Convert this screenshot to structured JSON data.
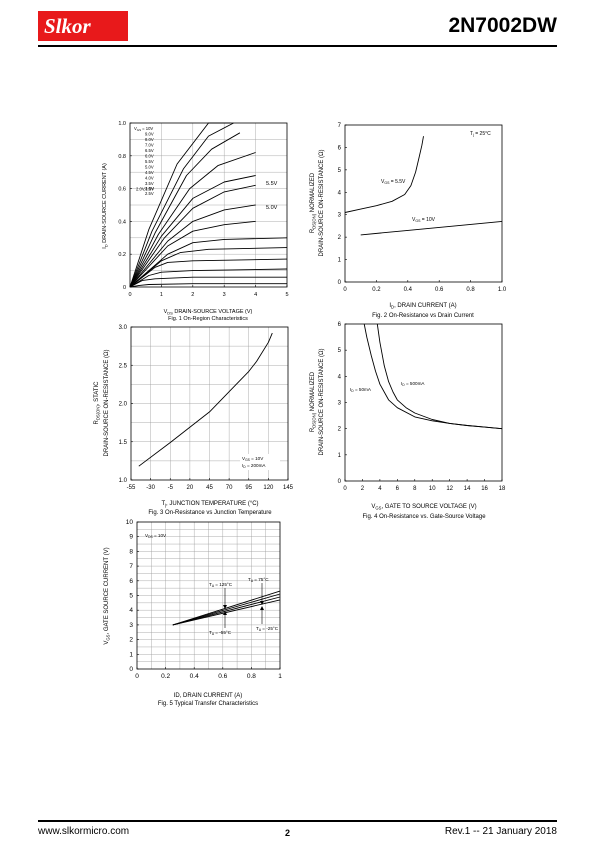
{
  "header": {
    "brand": "Slkor",
    "part": "2N7002DW"
  },
  "footer": {
    "website": "www.slkormicro.com",
    "page_number": "2",
    "revision": "Rev.1 -- 21 January 2018"
  },
  "charts": {
    "fig1": {
      "caption": "Fig. 1  On-Region Characteristics",
      "xlabel_pre": "V",
      "xlabel_sub": "DS",
      "xlabel_post": " DRAIN-SOURCE VOLTAGE (V)",
      "ylabel_pre": "I",
      "ylabel_sub": "D",
      "ylabel_post": " DRAIN-SOURCE CURRENT (A)",
      "xticks": [
        "0",
        "1",
        "2",
        "3",
        "4",
        "5"
      ],
      "yticks": [
        "0",
        "0.2",
        "0.4",
        "0.6",
        "0.8",
        "1.0"
      ],
      "legend_pre": "V",
      "legend_sub": "GS",
      "legend": [
        "= 10V",
        "9.0V",
        "8.0V",
        "7.0V",
        "6.5V",
        "6.0V",
        "5.5V",
        "5.0V",
        "4.5V",
        "4.0V",
        "3.5V",
        "3.0V",
        "2.5V",
        "2.0V,1.5V"
      ],
      "label_a": "5.5V",
      "label_b": "5.0V"
    },
    "fig2": {
      "caption": "Fig. 2  On-Resistance vs Drain Current",
      "xlabel_pre": "I",
      "xlabel_sub": "D",
      "xlabel_post": ", DRAIN CURRENT (A)",
      "ylabel1_pre": "R",
      "ylabel1_sub": "DS(ON)",
      "ylabel1_post": "  NORMALIZED",
      "ylabel2": "DRAIN-SOURCE ON-RESISTANCE (Ω)",
      "xticks": [
        "0",
        "0.2",
        "0.4",
        "0.6",
        "0.8",
        "1.0"
      ],
      "yticks": [
        "0",
        "1",
        "2",
        "3",
        "4",
        "5",
        "6",
        "7"
      ],
      "temp_pre": "T",
      "temp_sub": "j",
      "temp_post": " = 25°C",
      "curve_a_pre": "V",
      "curve_a_sub": "GS",
      "curve_a_post": " = 5.5V",
      "curve_b_pre": "V",
      "curve_b_sub": "GS",
      "curve_b_post": " = 10V"
    },
    "fig3": {
      "caption": "Fig. 3  On-Resistance vs Junction Temperature",
      "xlabel_pre": "T",
      "xlabel_sub": "j",
      "xlabel_post": ", JUNCTION TEMPERATURE (°C)",
      "ylabel1_pre": "R",
      "ylabel1_sub": "DS(ON)",
      "ylabel1_post": ", STATIC",
      "ylabel2": "DRAIN-SOURCE ON-RESISTANCE (Ω)",
      "xticks": [
        "-55",
        "-30",
        "-5",
        "20",
        "45",
        "70",
        "95",
        "120",
        "145"
      ],
      "yticks": [
        "1.0",
        "1.5",
        "2.0",
        "2.5",
        "3.0"
      ],
      "note1_pre": "V",
      "note1_sub": "GS",
      "note1_post": " = 10V",
      "note2_pre": "I",
      "note2_sub": "D",
      "note2_post": " = 200mA"
    },
    "fig4": {
      "caption": "Fig. 4  On-Resistance vs. Gate-Source Voltage",
      "xlabel_pre": "V",
      "xlabel_sub": "GS",
      "xlabel_post": ", GATE TO SOURCE VOLTAGE (V)",
      "ylabel1_pre": "R",
      "ylabel1_sub": "DS(ON)",
      "ylabel1_post": "  NORMALIZED",
      "ylabel2": "DRAIN-SOURCE ON-RESISTANCE (Ω)",
      "xticks": [
        "0",
        "2",
        "4",
        "6",
        "8",
        "10",
        "12",
        "14",
        "16",
        "18"
      ],
      "yticks": [
        "0",
        "1",
        "2",
        "3",
        "4",
        "5",
        "6"
      ],
      "curve_a_pre": "I",
      "curve_a_sub": "D",
      "curve_a_post": " = 50mA",
      "curve_b_pre": "I",
      "curve_b_sub": "D",
      "curve_b_post": " = 500mA"
    },
    "fig5": {
      "caption": "Fig. 5  Typical Transfer Characteristics",
      "xlabel": "ID, DRAIN CURRENT (A)",
      "ylabel_pre": "V",
      "ylabel_sub": "GS",
      "ylabel_post": ", GATE SOURCE CURRENT (V)",
      "xticks": [
        "0",
        "0.2",
        "0.4",
        "0.6",
        "0.8",
        "1"
      ],
      "yticks": [
        "0",
        "1",
        "2",
        "3",
        "4",
        "5",
        "6",
        "7",
        "8",
        "9",
        "10"
      ],
      "vds_pre": "V",
      "vds_sub": "DS",
      "vds_post": " = 10V",
      "t125_pre": "T",
      "t125_sub": "A",
      "t125_post": " = 125°C",
      "t75_pre": "T",
      "t75_sub": "A",
      "t75_post": " = 75°C",
      "tm55_pre": "T",
      "tm55_sub": "A",
      "tm55_post": " = -55°C",
      "tm25_pre": "T",
      "tm25_sub": "A",
      "tm25_post": " = -25°C"
    }
  },
  "chart_data": [
    {
      "type": "line",
      "xlim": [
        0,
        5
      ],
      "ylim": [
        0,
        1.0
      ],
      "grid": true,
      "series": [
        {
          "x": [
            0,
            0.6,
            1.5,
            2.5,
            3.2
          ],
          "y": [
            0,
            0.35,
            0.75,
            1.0,
            1.0
          ]
        },
        {
          "x": [
            0,
            0.7,
            1.7,
            2.5,
            3.3
          ],
          "y": [
            0,
            0.34,
            0.72,
            0.92,
            1.0
          ]
        },
        {
          "x": [
            0,
            0.8,
            1.8,
            2.6,
            3.5
          ],
          "y": [
            0,
            0.33,
            0.68,
            0.84,
            0.94
          ]
        },
        {
          "x": [
            0,
            0.9,
            1.9,
            2.8,
            4.0
          ],
          "y": [
            0,
            0.32,
            0.6,
            0.74,
            0.82
          ]
        },
        {
          "x": [
            0,
            1.0,
            2.0,
            3.0,
            4.0
          ],
          "y": [
            0,
            0.31,
            0.54,
            0.64,
            0.68
          ]
        },
        {
          "x": [
            0,
            1.1,
            2.0,
            3.0,
            4.0
          ],
          "y": [
            0,
            0.3,
            0.48,
            0.58,
            0.62
          ]
        },
        {
          "x": [
            0,
            1.2,
            2.0,
            3.0,
            4.0
          ],
          "y": [
            0,
            0.28,
            0.4,
            0.47,
            0.5
          ]
        },
        {
          "x": [
            0,
            1.2,
            2.0,
            3.0,
            4.0
          ],
          "y": [
            0,
            0.25,
            0.34,
            0.38,
            0.4
          ]
        },
        {
          "x": [
            0,
            1.2,
            2.0,
            3.0,
            5.0
          ],
          "y": [
            0,
            0.2,
            0.27,
            0.29,
            0.3
          ]
        },
        {
          "x": [
            0,
            1.0,
            1.6,
            2.5,
            5.0
          ],
          "y": [
            0,
            0.16,
            0.21,
            0.23,
            0.24
          ]
        },
        {
          "x": [
            0,
            0.8,
            1.2,
            2.0,
            5.0
          ],
          "y": [
            0,
            0.12,
            0.15,
            0.16,
            0.17
          ]
        },
        {
          "x": [
            0,
            0.6,
            1.0,
            2.0,
            5.0
          ],
          "y": [
            0,
            0.07,
            0.09,
            0.1,
            0.11
          ]
        },
        {
          "x": [
            0,
            0.4,
            0.8,
            2.0,
            5.0
          ],
          "y": [
            0,
            0.04,
            0.05,
            0.06,
            0.06
          ]
        },
        {
          "x": [
            0,
            0.3,
            0.6,
            2.0,
            5.0
          ],
          "y": [
            0,
            0.01,
            0.015,
            0.02,
            0.02
          ]
        }
      ]
    },
    {
      "type": "line",
      "xlim": [
        0,
        1.0
      ],
      "ylim": [
        0,
        7
      ],
      "grid": false,
      "series": [
        {
          "x": [
            0,
            0.1,
            0.2,
            0.3,
            0.38,
            0.42,
            0.45,
            0.47,
            0.49,
            0.5
          ],
          "y": [
            3.1,
            3.25,
            3.4,
            3.6,
            3.9,
            4.3,
            4.9,
            5.5,
            6.1,
            6.5
          ]
        },
        {
          "x": [
            0.1,
            0.4,
            0.7,
            1.0
          ],
          "y": [
            2.1,
            2.3,
            2.5,
            2.7
          ]
        }
      ]
    },
    {
      "type": "line",
      "xlim": [
        -55,
        145
      ],
      "ylim": [
        1.0,
        3.0
      ],
      "grid": true,
      "series": [
        {
          "x": [
            -45,
            -5,
            45,
            95,
            105,
            120,
            125
          ],
          "y": [
            1.18,
            1.49,
            1.89,
            2.42,
            2.55,
            2.8,
            2.92
          ]
        }
      ]
    },
    {
      "type": "line",
      "xlim": [
        0,
        18
      ],
      "ylim": [
        0,
        6
      ],
      "grid": false,
      "series": [
        {
          "x": [
            2.2,
            2.5,
            3,
            3.5,
            4,
            5,
            6,
            8,
            10,
            12,
            14,
            16,
            18
          ],
          "y": [
            6,
            5.5,
            4.8,
            4.2,
            3.7,
            3.1,
            2.8,
            2.45,
            2.3,
            2.2,
            2.12,
            2.06,
            2.0
          ]
        },
        {
          "x": [
            3.7,
            4,
            4.5,
            5,
            5.5,
            6,
            7,
            8,
            10,
            12,
            14,
            16,
            18
          ],
          "y": [
            6,
            5.3,
            4.4,
            3.8,
            3.4,
            3.1,
            2.8,
            2.6,
            2.35,
            2.2,
            2.12,
            2.06,
            2.0
          ]
        }
      ]
    },
    {
      "type": "line",
      "xlim": [
        0,
        1
      ],
      "ylim": [
        0,
        10
      ],
      "grid": true,
      "series": [
        {
          "x": [
            0.25,
            1.0
          ],
          "y": [
            3.0,
            5.1
          ]
        },
        {
          "x": [
            0.25,
            1.0
          ],
          "y": [
            3.0,
            4.9
          ]
        },
        {
          "x": [
            0.25,
            1.0
          ],
          "y": [
            3.0,
            4.7
          ]
        },
        {
          "x": [
            0.25,
            1.0
          ],
          "y": [
            3.0,
            5.3
          ]
        }
      ]
    }
  ]
}
